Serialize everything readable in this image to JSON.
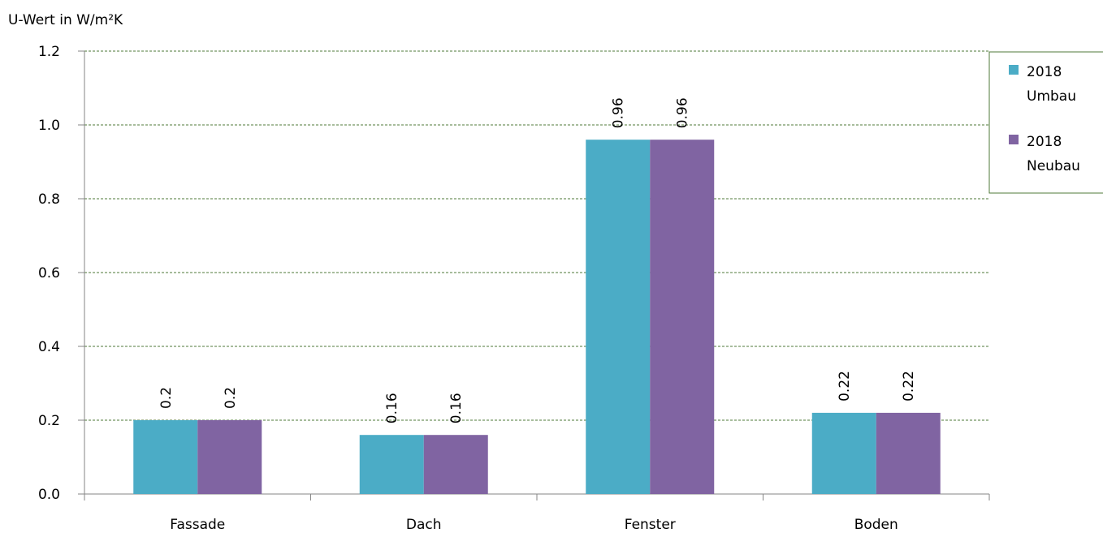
{
  "chart_data": {
    "type": "bar",
    "title": "",
    "ylabel": "U-Wert in W/m²K",
    "xlabel": "",
    "categories": [
      "Fassade",
      "Dach",
      "Fenster",
      "Boden"
    ],
    "series": [
      {
        "name": "2018 Umbau",
        "legend_lines": [
          "2018",
          "Umbau"
        ],
        "values": [
          0.2,
          0.16,
          0.96,
          0.22
        ],
        "labels": [
          "0.2",
          "0.16",
          "0.96",
          "0.22"
        ],
        "color": "#4bacc6"
      },
      {
        "name": "2018 Neubau",
        "legend_lines": [
          "2018",
          "Neubau"
        ],
        "values": [
          0.2,
          0.16,
          0.96,
          0.22
        ],
        "labels": [
          "0.2",
          "0.16",
          "0.96",
          "0.22"
        ],
        "color": "#8064a2"
      }
    ],
    "ylim": [
      0,
      1.2
    ],
    "yticks": [
      "0.0",
      "0.2",
      "0.4",
      "0.6",
      "0.8",
      "1.0",
      "1.2"
    ],
    "grid": true,
    "grid_color": "#4f7a3a",
    "legend_position": "right"
  }
}
